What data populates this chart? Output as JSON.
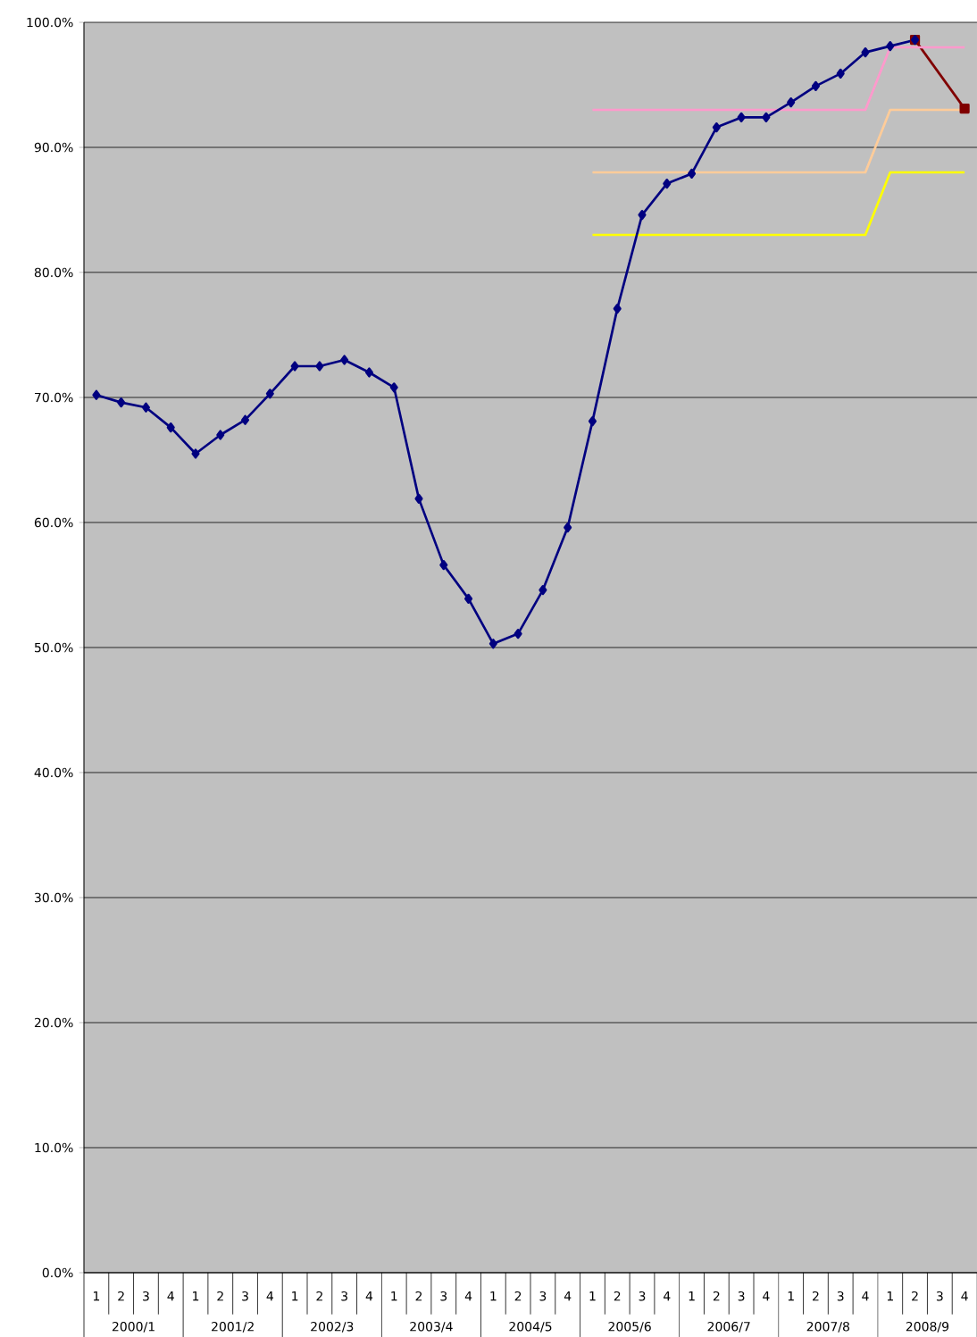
{
  "chart_data": {
    "type": "line",
    "categories": [
      "1",
      "2",
      "3",
      "4",
      "1",
      "2",
      "3",
      "4",
      "1",
      "2",
      "3",
      "4",
      "1",
      "2",
      "3",
      "4",
      "1",
      "2",
      "3",
      "4",
      "1",
      "2",
      "3",
      "4",
      "1",
      "2",
      "3",
      "4",
      "1",
      "2",
      "3",
      "4",
      "1",
      "2",
      "3",
      "4"
    ],
    "annotations": [
      "2000/1",
      "2001/2",
      "2002/3",
      "2003/4",
      "2004/5",
      "2005/6",
      "2006/7",
      "2007/8",
      "2008/9"
    ],
    "series": [
      {
        "color": "#800000",
        "marker": "square",
        "values": [
          null,
          null,
          null,
          null,
          null,
          null,
          null,
          null,
          null,
          null,
          null,
          null,
          null,
          null,
          null,
          null,
          null,
          null,
          null,
          null,
          null,
          null,
          null,
          null,
          null,
          null,
          null,
          null,
          null,
          null,
          null,
          null,
          null,
          98.6,
          null,
          93.1
        ]
      },
      {
        "color": "#ff99cc",
        "marker": "none",
        "values": [
          null,
          null,
          null,
          null,
          null,
          null,
          null,
          null,
          null,
          null,
          null,
          null,
          null,
          null,
          null,
          null,
          null,
          null,
          null,
          null,
          93,
          93,
          93,
          93,
          93,
          93,
          93,
          93,
          93,
          93,
          93,
          93,
          98,
          98,
          98,
          98
        ]
      },
      {
        "color": "#ffcc99",
        "marker": "none",
        "values": [
          null,
          null,
          null,
          null,
          null,
          null,
          null,
          null,
          null,
          null,
          null,
          null,
          null,
          null,
          null,
          null,
          null,
          null,
          null,
          null,
          88,
          88,
          88,
          88,
          88,
          88,
          88,
          88,
          88,
          88,
          88,
          88,
          93,
          93,
          93,
          93
        ]
      },
      {
        "color": "#ffff00",
        "marker": "none",
        "values": [
          null,
          null,
          null,
          null,
          null,
          null,
          null,
          null,
          null,
          null,
          null,
          null,
          null,
          null,
          null,
          null,
          null,
          null,
          null,
          null,
          83,
          83,
          83,
          83,
          83,
          83,
          83,
          83,
          83,
          83,
          83,
          83,
          88,
          88,
          88,
          88
        ]
      },
      {
        "color": "#000080",
        "marker": "diamond",
        "values": [
          70.2,
          69.6,
          69.2,
          67.6,
          65.5,
          67.0,
          68.2,
          70.3,
          72.5,
          72.5,
          73.0,
          72.0,
          70.8,
          61.9,
          56.6,
          53.9,
          50.3,
          51.1,
          54.6,
          59.6,
          68.1,
          77.1,
          84.6,
          87.1,
          87.9,
          91.6,
          92.4,
          92.4,
          93.6,
          94.9,
          95.9,
          97.6,
          98.1,
          98.6,
          null,
          null
        ]
      }
    ],
    "ylim": [
      0,
      100
    ],
    "yticks": [
      {
        "value": 0,
        "label": "0.0%"
      },
      {
        "value": 10,
        "label": "10.0%"
      },
      {
        "value": 20,
        "label": "20.0%"
      },
      {
        "value": 30,
        "label": "30.0%"
      },
      {
        "value": 40,
        "label": "40.0%"
      },
      {
        "value": 50,
        "label": "50.0%"
      },
      {
        "value": 60,
        "label": "60.0%"
      },
      {
        "value": 70,
        "label": "70.0%"
      },
      {
        "value": 80,
        "label": "80.0%"
      },
      {
        "value": 90,
        "label": "90.0%"
      },
      {
        "value": 100,
        "label": "100.0%"
      }
    ],
    "grid": "y"
  }
}
